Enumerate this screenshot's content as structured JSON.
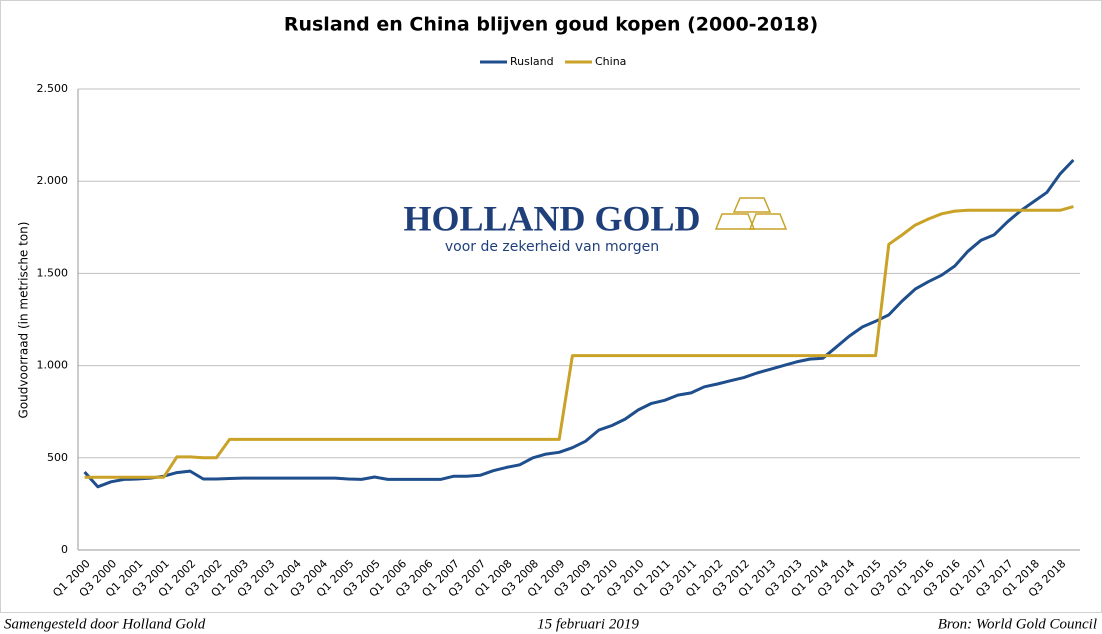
{
  "chart_data": {
    "type": "line",
    "title": "Rusland en China blijven goud kopen (2000-2018)",
    "y_label": "Goudvoorraad  (in metrische ton)",
    "logo": {
      "name": "HOLLAND GOLD",
      "tagline": "voor de zekerheid van morgen"
    },
    "footer": {
      "left": "Samengesteld door Holland Gold",
      "center": "15 februari 2019",
      "right": "Bron: World Gold Council"
    },
    "categories": [
      "Q1 2000",
      null,
      "Q3 2000",
      null,
      "Q1 2001",
      null,
      "Q3 2001",
      null,
      "Q1 2002",
      null,
      "Q3 2002",
      null,
      "Q1 2003",
      null,
      "Q3 2003",
      null,
      "Q1 2004",
      null,
      "Q3 2004",
      null,
      "Q1 2005",
      null,
      "Q3 2005",
      null,
      "Q1 2006",
      null,
      "Q3 2006",
      null,
      "Q1 2007",
      null,
      "Q3 2007",
      null,
      "Q1 2008",
      null,
      "Q3 2008",
      null,
      "Q1 2009",
      null,
      "Q3 2009",
      null,
      "Q1 2010",
      null,
      "Q3 2010",
      null,
      "Q1 2011",
      null,
      "Q3 2011",
      null,
      "Q1 2012",
      null,
      "Q3 2012",
      null,
      "Q1 2013",
      null,
      "Q3 2013",
      null,
      "Q1 2014",
      null,
      "Q3 2014",
      null,
      "Q1 2015",
      null,
      "Q3 2015",
      null,
      "Q1 2016",
      null,
      "Q3 2016",
      null,
      "Q1 2017",
      null,
      "Q3 2017",
      null,
      "Q1 2018",
      null,
      "Q3 2018",
      null
    ],
    "series": [
      {
        "name": "Rusland",
        "color": "#1f4e8c",
        "values": [
          423,
          343,
          370,
          383,
          385,
          390,
          400,
          420,
          428,
          385,
          385,
          388,
          390,
          390,
          390,
          390,
          390,
          390,
          390,
          390,
          385,
          383,
          396,
          383,
          383,
          383,
          383,
          383,
          400,
          400,
          405,
          430,
          448,
          462,
          500,
          520,
          530,
          555,
          590,
          650,
          675,
          710,
          760,
          795,
          812,
          840,
          852,
          885,
          900,
          918,
          935,
          960,
          980,
          1000,
          1020,
          1035,
          1040,
          1100,
          1160,
          1210,
          1240,
          1275,
          1350,
          1415,
          1455,
          1490,
          1540,
          1620,
          1680,
          1710,
          1780,
          1840,
          1890,
          1940,
          2040,
          2115
        ]
      },
      {
        "name": "China",
        "color": "#c9a227",
        "values": [
          395,
          395,
          395,
          395,
          395,
          395,
          395,
          505,
          505,
          500,
          500,
          600,
          600,
          600,
          600,
          600,
          600,
          600,
          600,
          600,
          600,
          600,
          600,
          600,
          600,
          600,
          600,
          600,
          600,
          600,
          600,
          600,
          600,
          600,
          600,
          600,
          600,
          1054,
          1054,
          1054,
          1054,
          1054,
          1054,
          1054,
          1054,
          1054,
          1054,
          1054,
          1054,
          1054,
          1054,
          1054,
          1054,
          1054,
          1054,
          1054,
          1054,
          1054,
          1054,
          1054,
          1054,
          1658,
          1708,
          1762,
          1795,
          1823,
          1838,
          1842,
          1842,
          1842,
          1842,
          1842,
          1842,
          1842,
          1842,
          1862
        ]
      }
    ],
    "ylim": [
      0,
      2500
    ],
    "yticks": [
      0,
      {
        "value": 500,
        "label": "500"
      },
      {
        "value": 1000,
        "label": "1.000"
      },
      {
        "value": 1500,
        "label": "1.500"
      },
      {
        "value": 2000,
        "label": "2.000"
      },
      {
        "value": 2500,
        "label": "2.500"
      }
    ],
    "grid": true,
    "legend": "top"
  }
}
